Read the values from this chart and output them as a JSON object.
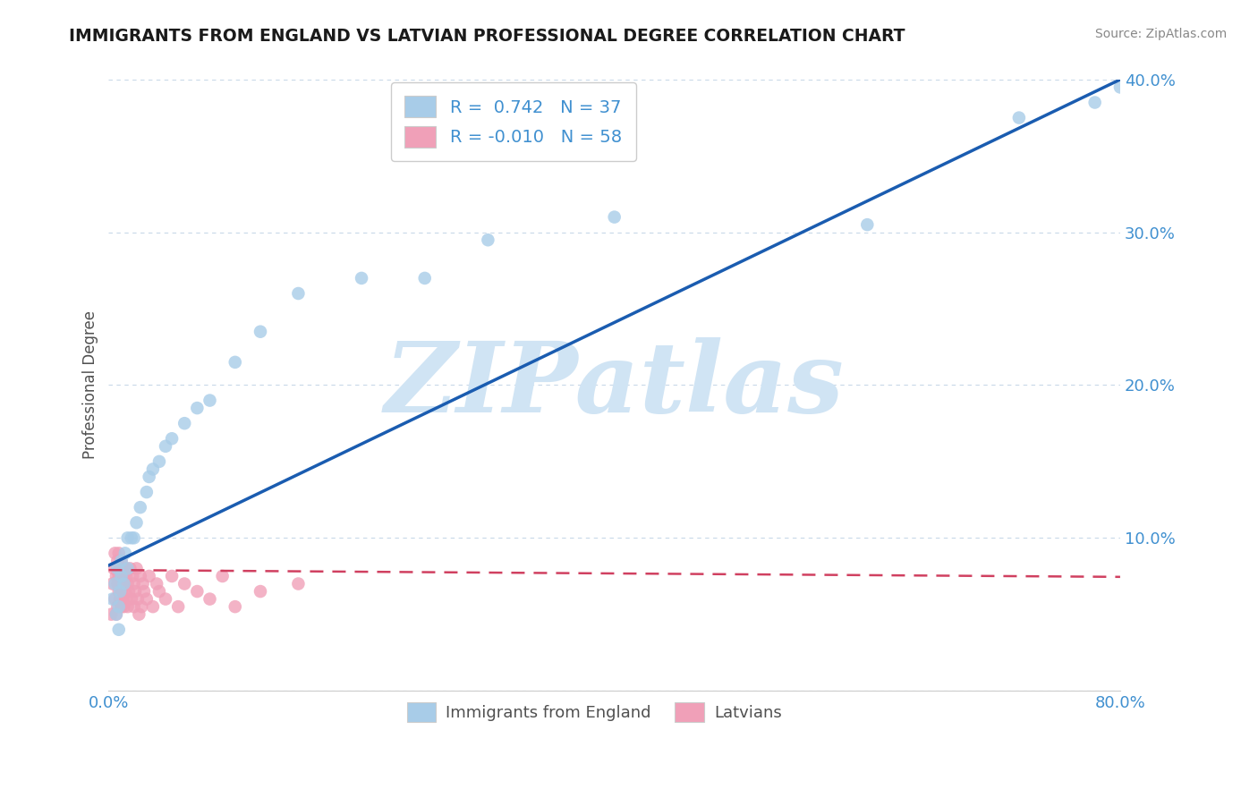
{
  "title": "IMMIGRANTS FROM ENGLAND VS LATVIAN PROFESSIONAL DEGREE CORRELATION CHART",
  "source": "Source: ZipAtlas.com",
  "ylabel": "Professional Degree",
  "watermark": "ZIPatlas",
  "xlim": [
    0.0,
    0.8
  ],
  "ylim": [
    0.0,
    0.4
  ],
  "xticks": [
    0.0,
    0.2,
    0.4,
    0.6,
    0.8
  ],
  "xticklabels": [
    "0.0%",
    "",
    "",
    "",
    "80.0%"
  ],
  "yticks": [
    0.0,
    0.1,
    0.2,
    0.3,
    0.4
  ],
  "yticklabels": [
    "",
    "10.0%",
    "20.0%",
    "30.0%",
    "40.0%"
  ],
  "legend1_label": "Immigrants from England",
  "legend2_label": "Latvians",
  "R1": "0.742",
  "N1": "37",
  "R2": "-0.010",
  "N2": "58",
  "color_blue": "#a8cce8",
  "color_pink": "#f0a0b8",
  "line_blue": "#1a5cb0",
  "line_pink": "#d04060",
  "background_color": "#ffffff",
  "grid_color": "#c8d8e8",
  "title_color": "#1a1a1a",
  "axis_label_color": "#505050",
  "tick_label_color": "#4090d0",
  "legend_text_color": "#4090d0",
  "watermark_color": "#d0e4f4",
  "england_x": [
    0.003,
    0.005,
    0.006,
    0.007,
    0.008,
    0.008,
    0.009,
    0.01,
    0.01,
    0.012,
    0.013,
    0.015,
    0.015,
    0.018,
    0.02,
    0.022,
    0.025,
    0.03,
    0.032,
    0.035,
    0.04,
    0.045,
    0.05,
    0.06,
    0.07,
    0.08,
    0.1,
    0.12,
    0.15,
    0.2,
    0.25,
    0.3,
    0.4,
    0.6,
    0.72,
    0.78,
    0.8
  ],
  "england_y": [
    0.06,
    0.07,
    0.05,
    0.08,
    0.04,
    0.055,
    0.065,
    0.075,
    0.085,
    0.07,
    0.09,
    0.1,
    0.08,
    0.1,
    0.1,
    0.11,
    0.12,
    0.13,
    0.14,
    0.145,
    0.15,
    0.16,
    0.165,
    0.175,
    0.185,
    0.19,
    0.215,
    0.235,
    0.26,
    0.27,
    0.27,
    0.295,
    0.31,
    0.305,
    0.375,
    0.385,
    0.395
  ],
  "latvian_x": [
    0.002,
    0.003,
    0.004,
    0.005,
    0.005,
    0.006,
    0.006,
    0.007,
    0.007,
    0.007,
    0.008,
    0.008,
    0.008,
    0.009,
    0.009,
    0.01,
    0.01,
    0.01,
    0.01,
    0.011,
    0.011,
    0.012,
    0.012,
    0.013,
    0.013,
    0.014,
    0.014,
    0.015,
    0.015,
    0.016,
    0.017,
    0.018,
    0.019,
    0.02,
    0.02,
    0.021,
    0.022,
    0.023,
    0.024,
    0.025,
    0.026,
    0.027,
    0.028,
    0.03,
    0.032,
    0.035,
    0.038,
    0.04,
    0.045,
    0.05,
    0.055,
    0.06,
    0.07,
    0.08,
    0.09,
    0.1,
    0.12,
    0.15
  ],
  "latvian_y": [
    0.05,
    0.07,
    0.08,
    0.06,
    0.09,
    0.05,
    0.075,
    0.055,
    0.07,
    0.085,
    0.065,
    0.075,
    0.09,
    0.06,
    0.08,
    0.055,
    0.065,
    0.075,
    0.085,
    0.06,
    0.07,
    0.055,
    0.075,
    0.065,
    0.08,
    0.06,
    0.075,
    0.055,
    0.07,
    0.065,
    0.08,
    0.06,
    0.075,
    0.055,
    0.07,
    0.065,
    0.08,
    0.06,
    0.05,
    0.075,
    0.055,
    0.07,
    0.065,
    0.06,
    0.075,
    0.055,
    0.07,
    0.065,
    0.06,
    0.075,
    0.055,
    0.07,
    0.065,
    0.06,
    0.075,
    0.055,
    0.065,
    0.07
  ],
  "blue_line_x0": 0.0,
  "blue_line_y0": 0.082,
  "blue_line_x1": 0.8,
  "blue_line_y1": 0.4,
  "pink_line_x0": 0.0,
  "pink_line_y0": 0.079,
  "pink_line_x1": 0.8,
  "pink_line_y1": 0.0745
}
